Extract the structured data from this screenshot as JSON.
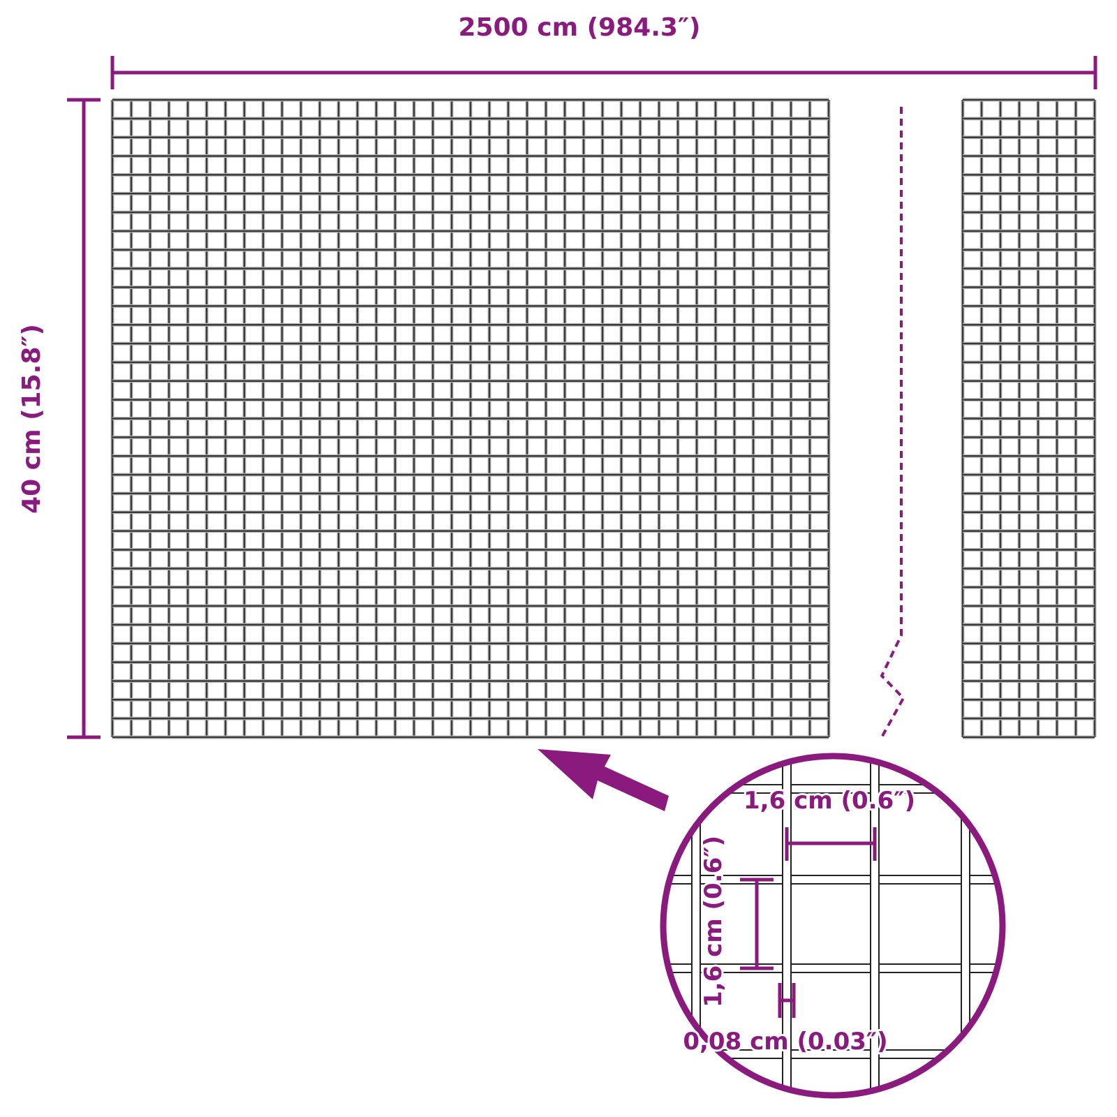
{
  "colors": {
    "accent": "#8b1a7e",
    "wire": "#3a3a3a"
  },
  "dimensions": {
    "length_label": "2500 cm (984.3″)",
    "height_label": "40 cm (15.8″)",
    "mesh_width_label": "1,6 cm (0.6″)",
    "mesh_height_label": "1,6 cm (0.6″)",
    "wire_thickness_label": "0,08 cm (0.03″)"
  },
  "icons": {
    "detail_arrow": "arrow-up-left-icon",
    "break_line": "dashed-break-line"
  }
}
